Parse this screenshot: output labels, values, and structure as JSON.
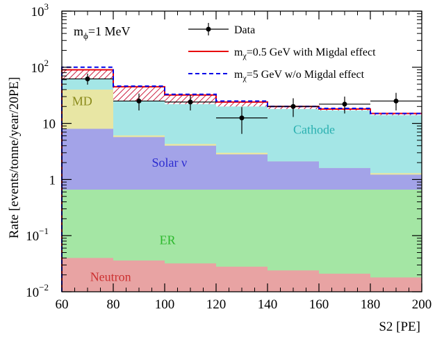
{
  "chart_data": {
    "type": "stacked-step-histogram",
    "xlabel": "S2 [PE]",
    "ylabel": "Rate [events/tonne/year/20PE]",
    "xlim": [
      60,
      200
    ],
    "ylim": [
      0.01,
      1000
    ],
    "yscale": "log",
    "x_ticks": [
      "60",
      "80",
      "100",
      "120",
      "140",
      "160",
      "180",
      "200"
    ],
    "y_ticks": [
      {
        "value": 0.01,
        "base": "10",
        "exp": "−2"
      },
      {
        "value": 0.1,
        "base": "10",
        "exp": "−1"
      },
      {
        "value": 1,
        "base": "1",
        "exp": ""
      },
      {
        "value": 10,
        "base": "10",
        "exp": ""
      },
      {
        "value": 100,
        "base": "10",
        "exp": "2"
      },
      {
        "value": 1000,
        "base": "10",
        "exp": "3"
      }
    ],
    "bin_edges": [
      60,
      80,
      100,
      120,
      140,
      160,
      180,
      200
    ],
    "annotation": {
      "base": "m",
      "sub": "ϕ",
      "rest": "=1 MeV"
    },
    "stack": [
      {
        "name": "Neutron",
        "color": "#e8a3a3",
        "cumulative": [
          0.04,
          0.036,
          0.032,
          0.028,
          0.024,
          0.021,
          0.018
        ]
      },
      {
        "name": "ER",
        "color": "#a4e6a4",
        "cumulative": [
          0.66,
          0.66,
          0.66,
          0.66,
          0.66,
          0.66,
          0.66
        ]
      },
      {
        "name": "Solar ν",
        "color": "#a3a3e8",
        "cumulative": [
          8.0,
          5.7,
          4.0,
          2.8,
          2.1,
          1.6,
          1.22
        ]
      },
      {
        "name": "MD",
        "color": "#e8e6a4",
        "cumulative": [
          40,
          6.1,
          4.3,
          3.0,
          2.1,
          1.6,
          1.3
        ]
      },
      {
        "name": "Cathode",
        "color": "#a4e6e6",
        "cumulative": [
          62,
          25,
          22,
          20,
          18,
          17,
          14
        ]
      }
    ],
    "series": [
      {
        "name": "Data",
        "type": "points",
        "color": "#000000",
        "x": [
          70,
          90,
          110,
          130,
          150,
          170,
          190
        ],
        "y": [
          62,
          25,
          24,
          12.5,
          20,
          22,
          25
        ],
        "yerr_low": [
          13,
          8,
          7,
          6,
          7,
          7,
          8
        ],
        "yerr_high": [
          15,
          9,
          8,
          7,
          8,
          8,
          10
        ]
      },
      {
        "name": "m",
        "name_sub": "χ",
        "name_rest": "=0.5 GeV with Migdal effect",
        "type": "step",
        "color": "#e8000b",
        "values": [
          90,
          45,
          32,
          24,
          20,
          18,
          15
        ]
      },
      {
        "name": "m",
        "name_sub": "χ",
        "name_rest": "=5 GeV w/o Migdal effect",
        "type": "step-dashed",
        "color": "#0000e8",
        "values": [
          100,
          46,
          33,
          25,
          20,
          18.5,
          15
        ]
      }
    ],
    "legend_position": "top-right",
    "region_labels": [
      {
        "text": "MD",
        "x": 64,
        "y": 21,
        "color": "#8a8a1a"
      },
      {
        "text": "Cathode",
        "x": 150,
        "y": 6.5,
        "color": "#2ab0b0"
      },
      {
        "text": "Solar ν",
        "x": 95,
        "y": 1.7,
        "color": "#2b2bd0"
      },
      {
        "text": "ER",
        "x": 98,
        "y": 0.07,
        "color": "#2cb82c"
      },
      {
        "text": "Neutron",
        "x": 71,
        "y": 0.0155,
        "color": "#cc3030"
      }
    ]
  }
}
